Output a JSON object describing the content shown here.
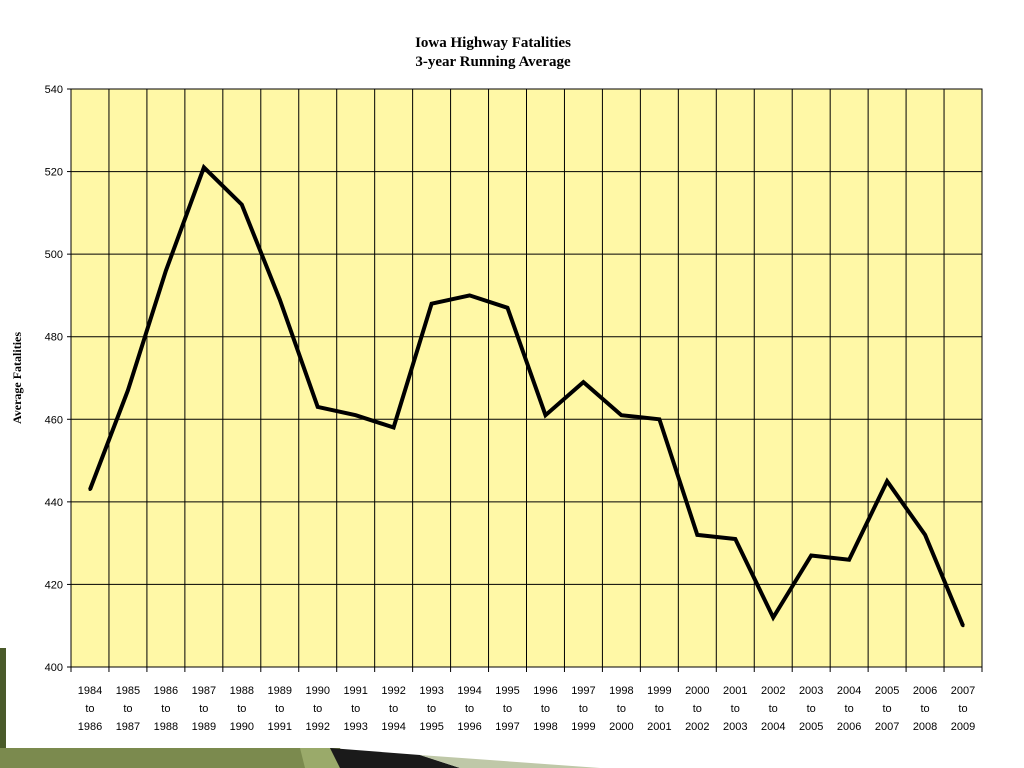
{
  "chart_data": {
    "type": "line",
    "title_line1": "Iowa Highway Fatalities",
    "title_line2": "3-year Running Average",
    "xlabel": "",
    "ylabel": "Average Fatalities",
    "ylim": [
      400,
      540
    ],
    "yticks": [
      400,
      420,
      440,
      460,
      480,
      500,
      520,
      540
    ],
    "grid": true,
    "legend": "none",
    "plot_background": "#FFF8A6",
    "line_color": "#000000",
    "categories": [
      [
        "1984",
        "to",
        "1986"
      ],
      [
        "1985",
        "to",
        "1987"
      ],
      [
        "1986",
        "to",
        "1988"
      ],
      [
        "1987",
        "to",
        "1989"
      ],
      [
        "1988",
        "to",
        "1990"
      ],
      [
        "1989",
        "to",
        "1991"
      ],
      [
        "1990",
        "to",
        "1992"
      ],
      [
        "1991",
        "to",
        "1993"
      ],
      [
        "1992",
        "to",
        "1994"
      ],
      [
        "1993",
        "to",
        "1995"
      ],
      [
        "1994",
        "to",
        "1996"
      ],
      [
        "1995",
        "to",
        "1997"
      ],
      [
        "1996",
        "to",
        "1998"
      ],
      [
        "1997",
        "to",
        "1999"
      ],
      [
        "1998",
        "to",
        "2000"
      ],
      [
        "1999",
        "to",
        "2001"
      ],
      [
        "2000",
        "to",
        "2002"
      ],
      [
        "2001",
        "to",
        "2003"
      ],
      [
        "2002",
        "to",
        "2004"
      ],
      [
        "2003",
        "to",
        "2005"
      ],
      [
        "2004",
        "to",
        "2006"
      ],
      [
        "2005",
        "to",
        "2007"
      ],
      [
        "2006",
        "to",
        "2008"
      ],
      [
        "2007",
        "to",
        "2009"
      ]
    ],
    "series": [
      {
        "values": [
          443,
          467,
          496,
          521,
          512,
          489,
          463,
          461,
          458,
          488,
          490,
          487,
          461,
          469,
          461,
          460,
          432,
          431,
          412,
          427,
          426,
          445,
          432,
          410
        ]
      }
    ]
  }
}
